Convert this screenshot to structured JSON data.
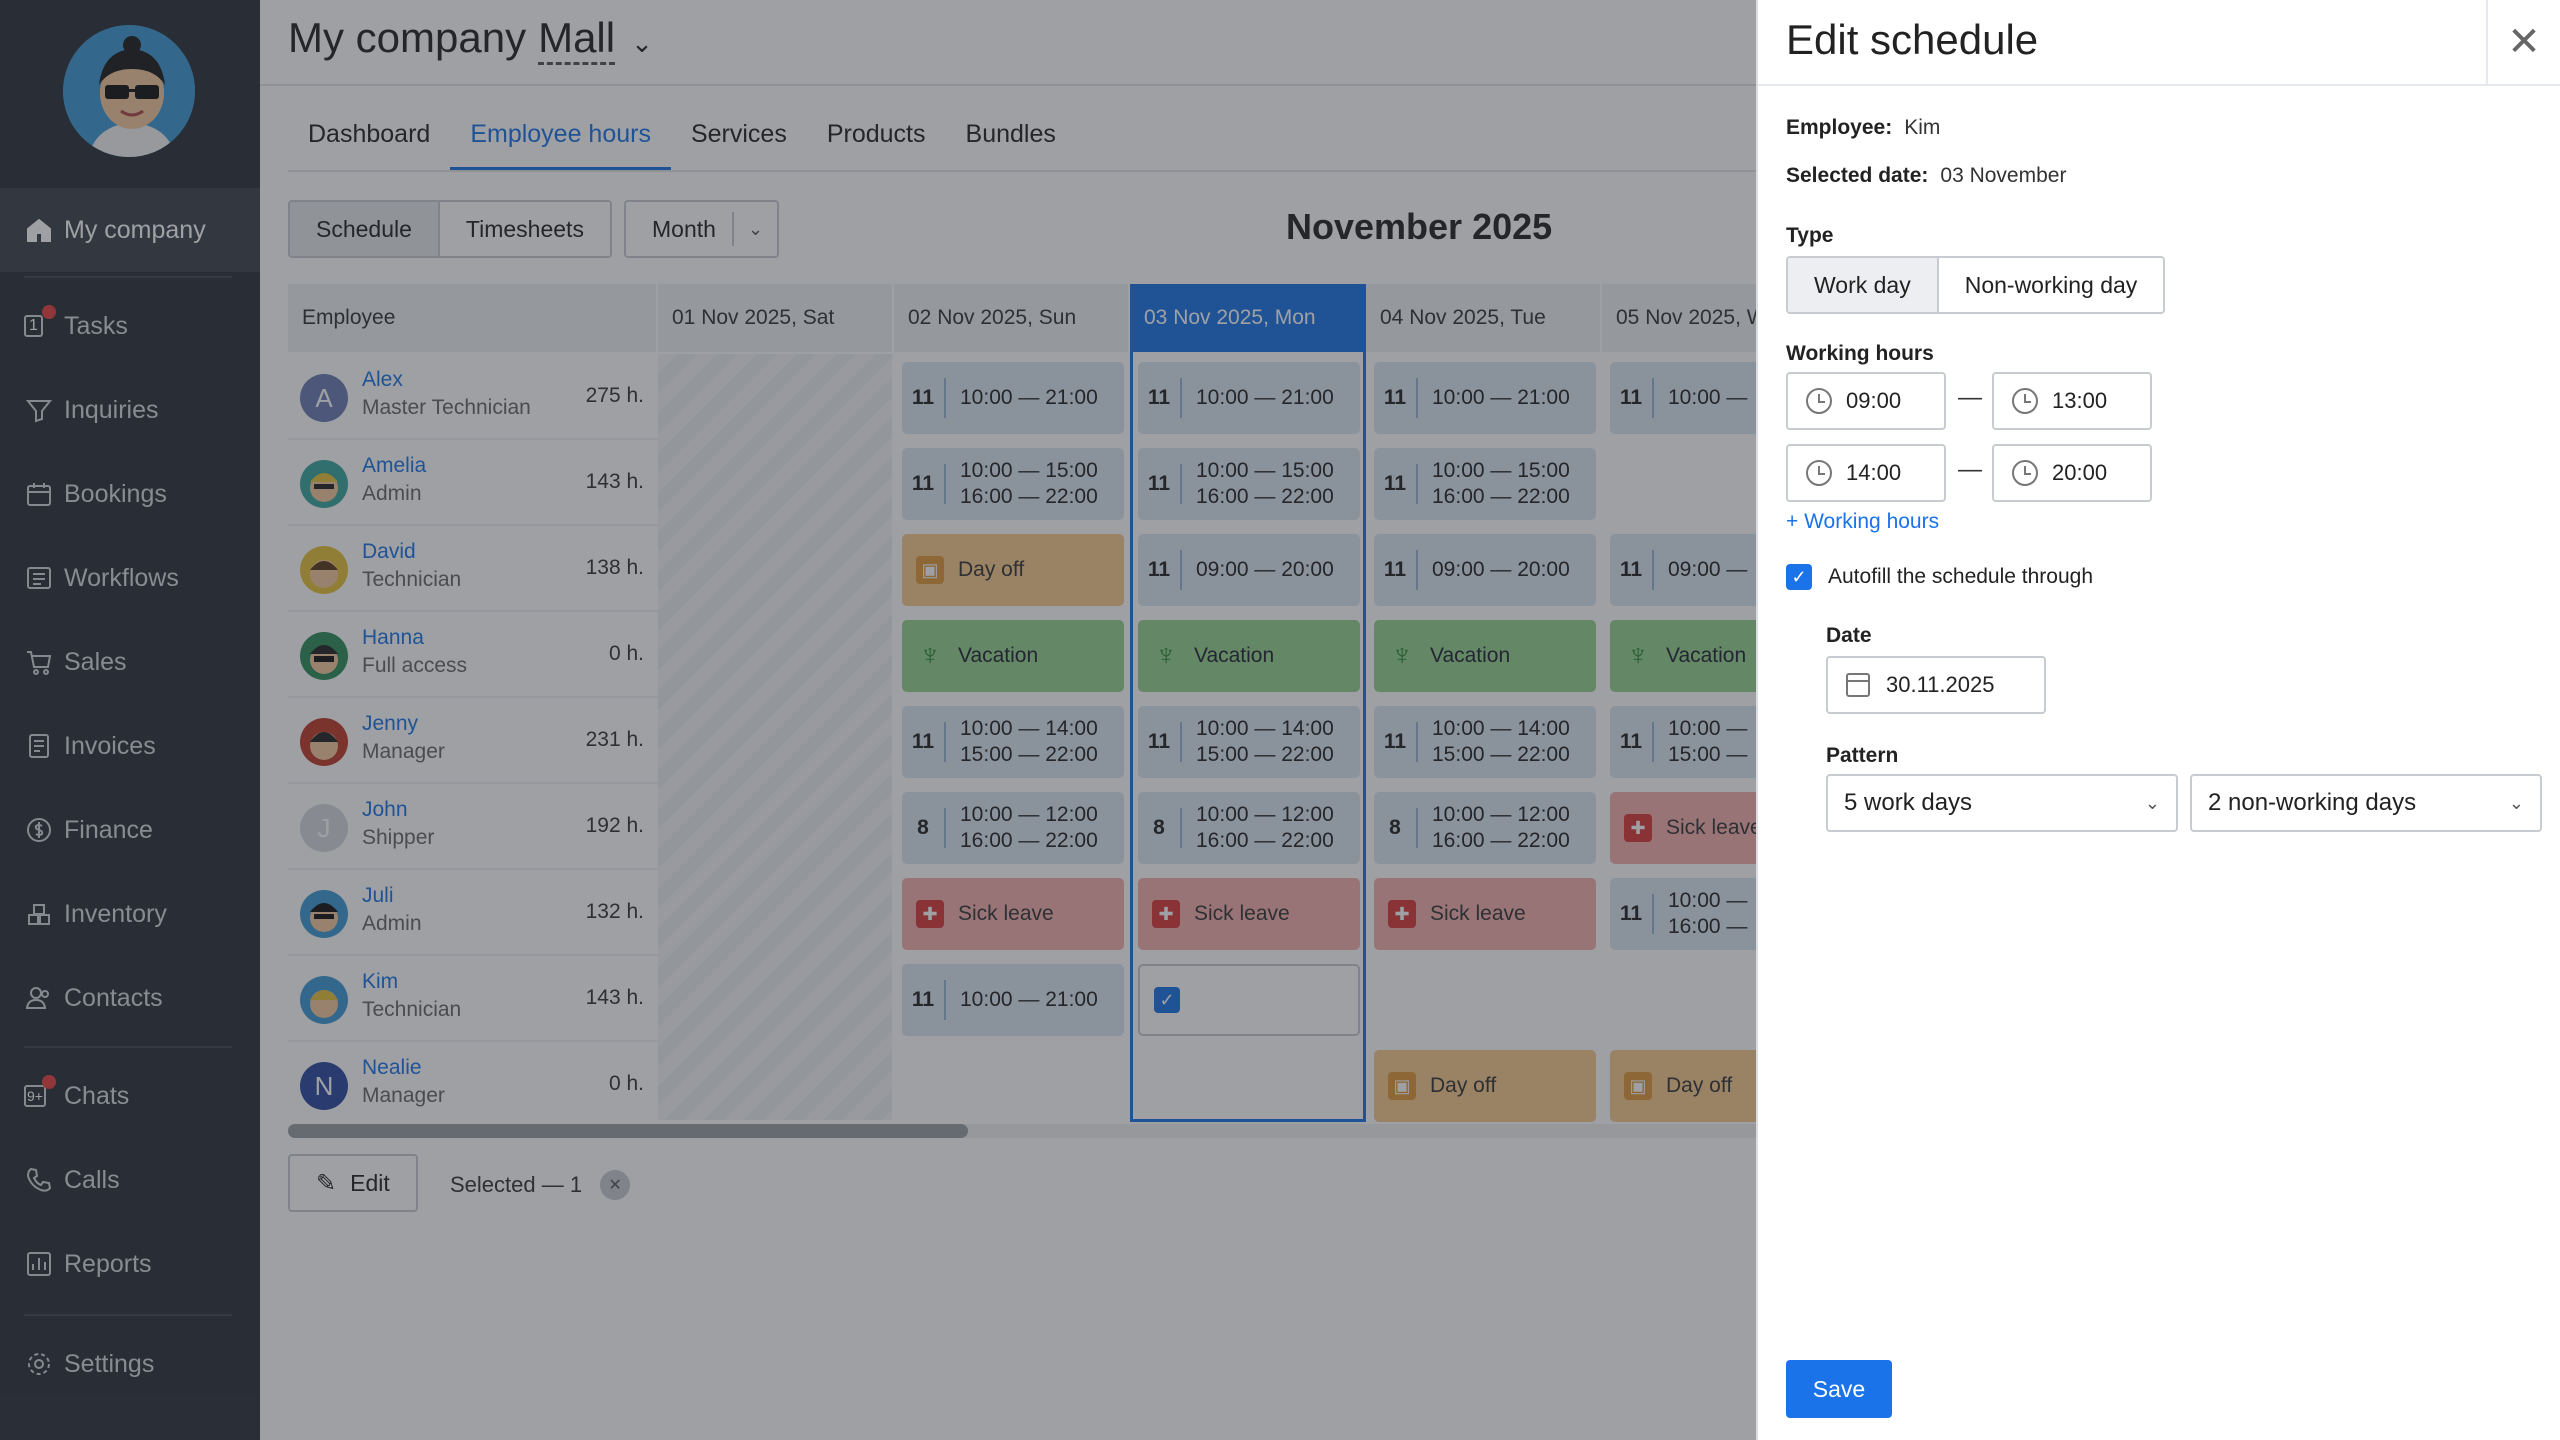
{
  "app": {
    "company": "My company",
    "store": "Mall",
    "month_title": "November 2025"
  },
  "sidebar": {
    "items": [
      {
        "label": "My company",
        "icon": "home-icon"
      },
      {
        "label": "Tasks",
        "icon": "tasks-icon",
        "badge": "1"
      },
      {
        "label": "Inquiries",
        "icon": "funnel-icon"
      },
      {
        "label": "Bookings",
        "icon": "calendar-icon"
      },
      {
        "label": "Workflows",
        "icon": "workflow-icon"
      },
      {
        "label": "Sales",
        "icon": "cart-icon"
      },
      {
        "label": "Invoices",
        "icon": "invoice-icon"
      },
      {
        "label": "Finance",
        "icon": "dollar-icon"
      },
      {
        "label": "Inventory",
        "icon": "boxes-icon"
      },
      {
        "label": "Contacts",
        "icon": "contacts-icon"
      },
      {
        "label": "Chats",
        "icon": "chat-icon",
        "badge": "9+"
      },
      {
        "label": "Calls",
        "icon": "phone-icon"
      },
      {
        "label": "Reports",
        "icon": "reports-icon"
      },
      {
        "label": "Settings",
        "icon": "gear-icon"
      }
    ]
  },
  "tabs": [
    "Dashboard",
    "Employee hours",
    "Services",
    "Products",
    "Bundles"
  ],
  "view_toggle": [
    "Schedule",
    "Timesheets"
  ],
  "period": "Month",
  "grid": {
    "headers": [
      "Employee",
      "01 Nov 2025, Sat",
      "02 Nov 2025, Sun",
      "03 Nov 2025, Mon",
      "04 Nov 2025, Tue",
      "05 Nov 2025, W"
    ],
    "employees": [
      {
        "name": "Alex",
        "role": "Master Technician",
        "hours": "275 h.",
        "initial": "A"
      },
      {
        "name": "Amelia",
        "role": "Admin",
        "hours": "143 h."
      },
      {
        "name": "David",
        "role": "Technician",
        "hours": "138 h."
      },
      {
        "name": "Hanna",
        "role": "Full access",
        "hours": "0 h."
      },
      {
        "name": "Jenny",
        "role": "Manager",
        "hours": "231 h."
      },
      {
        "name": "John",
        "role": "Shipper",
        "hours": "192 h.",
        "initial": "J"
      },
      {
        "name": "Juli",
        "role": "Admin",
        "hours": "132 h."
      },
      {
        "name": "Kim",
        "role": "Technician",
        "hours": "143 h."
      },
      {
        "name": "Nealie",
        "role": "Manager",
        "hours": "0 h.",
        "initial": "N"
      }
    ],
    "cells": {
      "t1": "10:00 — 21:00",
      "t2a": "10:00 — 15:00",
      "t2b": "16:00 — 22:00",
      "t3": "09:00 — 20:00",
      "t4a": "10:00 — 14:00",
      "t4b": "15:00 — 22:00",
      "t5a": "10:00 — 12:00",
      "t5b": "16:00 — 22:00",
      "n11": "11",
      "n8": "8",
      "day_off": "Day off",
      "vacation": "Vacation",
      "sick": "Sick leave",
      "sick_cut": "Sick leave",
      "vac_cut": "Vacation",
      "t1_cut": "10:00 —",
      "t3_cut": "09:00 —",
      "t4a_cut": "10:00 —",
      "t4b_cut": "15:00 —",
      "t6a_cut": "10:00 —",
      "t6b_cut": "16:00 —"
    }
  },
  "footer": {
    "edit": "Edit",
    "selected": "Selected — 1"
  },
  "panel": {
    "title": "Edit schedule",
    "employee_label": "Employee:",
    "employee_value": "Kim",
    "date_label": "Selected date:",
    "date_value": "03 November",
    "type_label": "Type",
    "type_options": [
      "Work day",
      "Non-working day"
    ],
    "hours_label": "Working hours",
    "hours": [
      [
        "09:00",
        "13:00"
      ],
      [
        "14:00",
        "20:00"
      ]
    ],
    "add_hours": "+ Working hours",
    "autofill": "Autofill the schedule through",
    "autofill_date_label": "Date",
    "autofill_date": "30.11.2025",
    "pattern_label": "Pattern",
    "pattern_work": "5 work days",
    "pattern_off": "2 non-working days",
    "save": "Save"
  }
}
